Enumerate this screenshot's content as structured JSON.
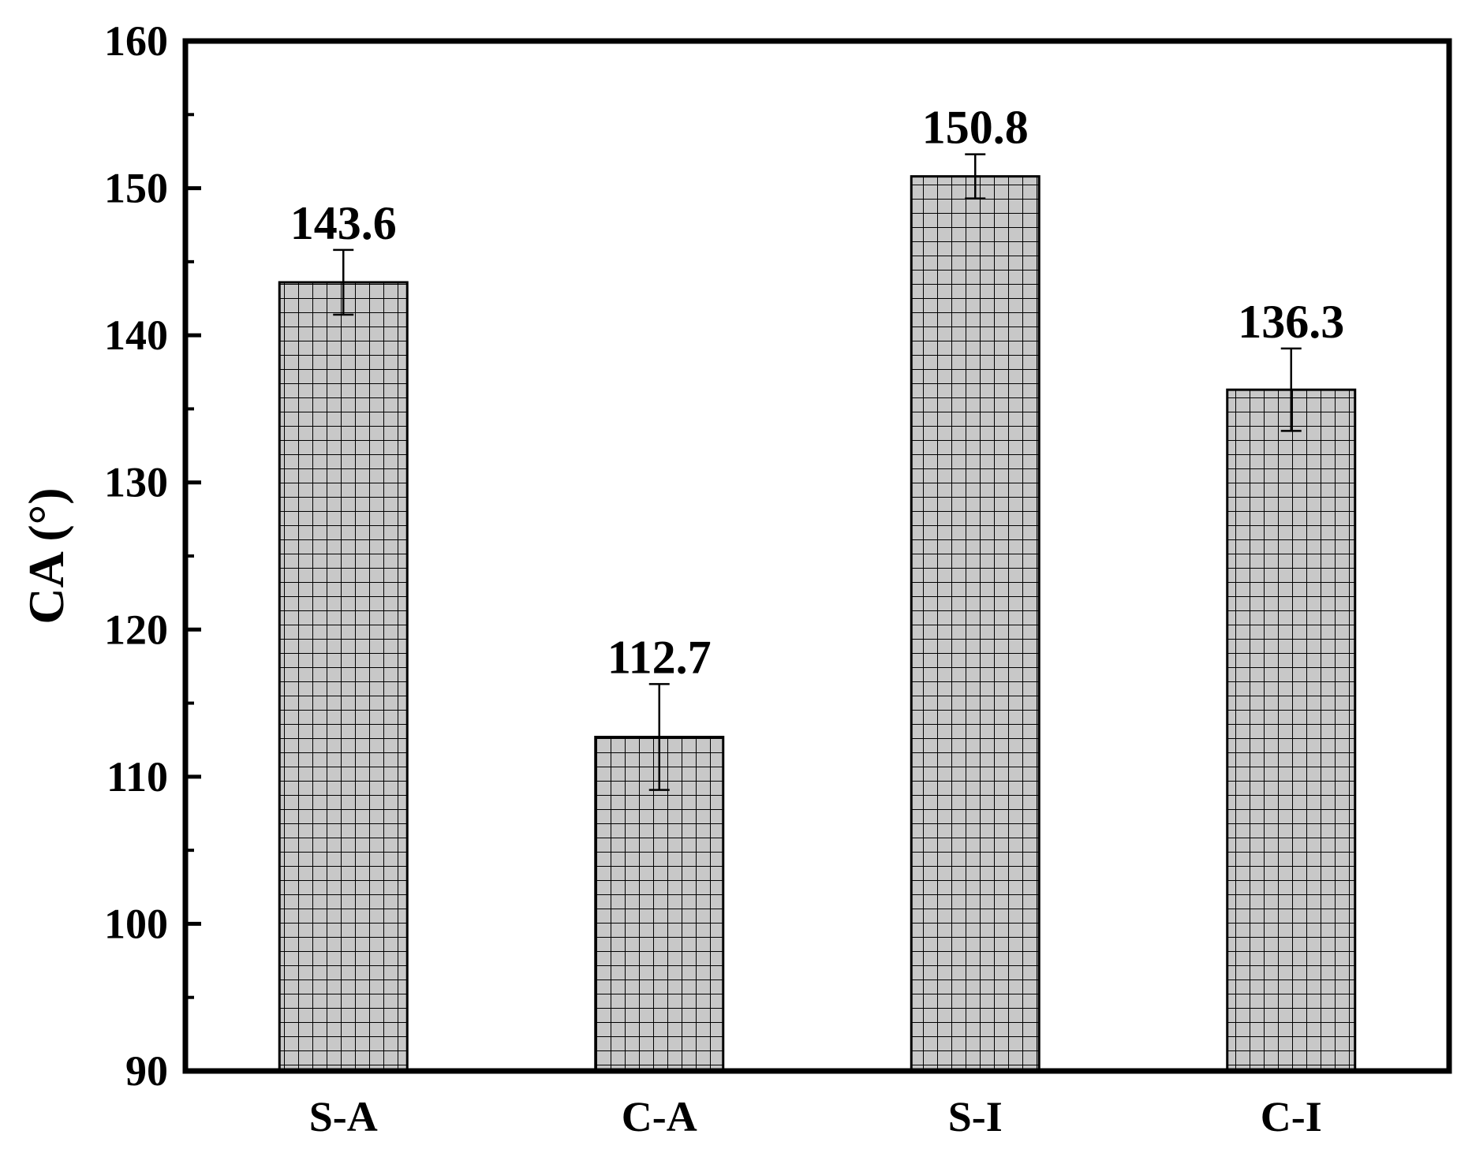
{
  "chart_data": {
    "type": "bar",
    "title": "",
    "xlabel": "",
    "ylabel": "CA (°)",
    "categories": [
      "S-A",
      "C-A",
      "S-I",
      "C-I"
    ],
    "values": [
      143.6,
      112.7,
      150.8,
      136.3
    ],
    "value_labels": [
      "143.6",
      "112.7",
      "150.8",
      "136.3"
    ],
    "error": [
      2.2,
      3.6,
      1.5,
      2.8
    ],
    "ylim": [
      90,
      160
    ],
    "yticks": [
      90,
      100,
      110,
      120,
      130,
      140,
      150,
      160
    ],
    "ytick_labels": [
      "90",
      "100",
      "110",
      "120",
      "130",
      "140",
      "150",
      "160"
    ],
    "minor_ytick_step": 5,
    "grid": false,
    "bar_fill": "#c8c8c8",
    "bar_pattern": "grid-hatch",
    "bar_edge": "#000000"
  }
}
